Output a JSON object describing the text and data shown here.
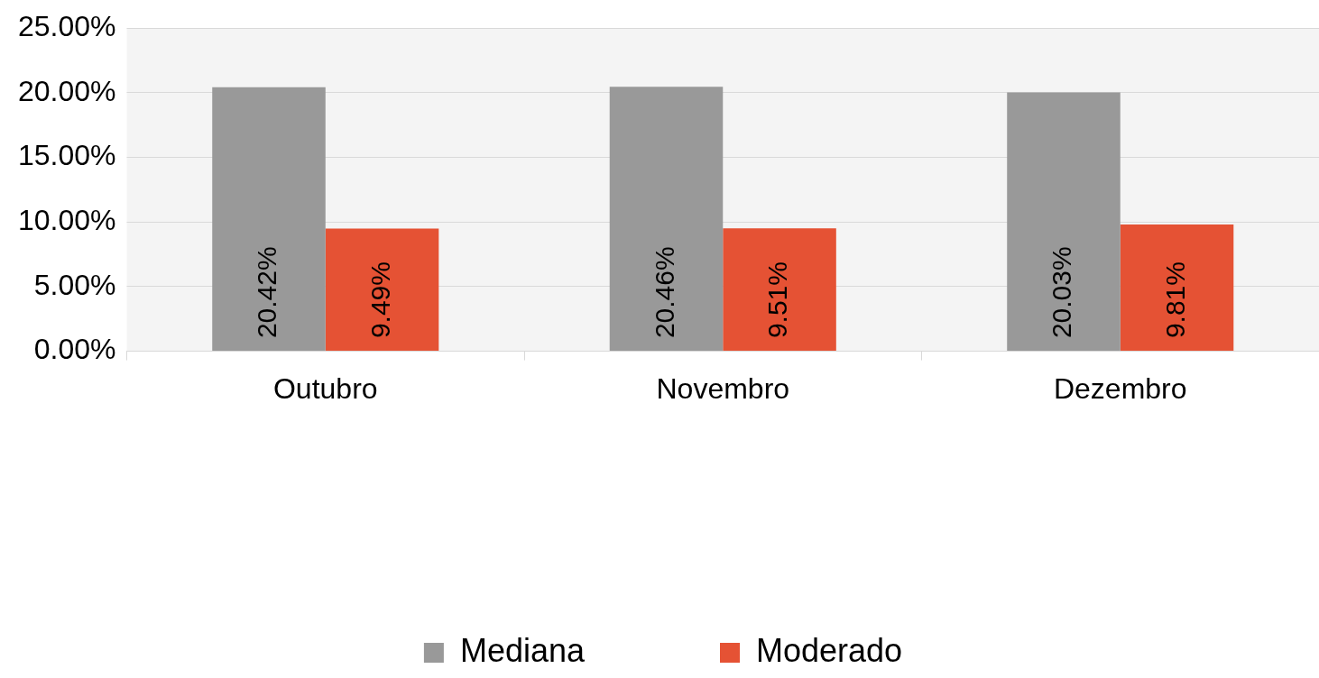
{
  "chart_data": {
    "type": "bar",
    "categories": [
      "Outubro",
      "Novembro",
      "Dezembro"
    ],
    "series": [
      {
        "name": "Mediana",
        "color": "#999999",
        "values": [
          20.42,
          20.46,
          20.03
        ]
      },
      {
        "name": "Moderado",
        "color": "#e55234",
        "values": [
          9.49,
          9.51,
          9.81
        ]
      }
    ],
    "ylim": [
      0,
      25
    ],
    "yticks": [
      {
        "value": 0,
        "label": "0.00%"
      },
      {
        "value": 5,
        "label": "5.00%"
      },
      {
        "value": 10,
        "label": "10.00%"
      },
      {
        "value": 15,
        "label": "15.00%"
      },
      {
        "value": 20,
        "label": "20.00%"
      },
      {
        "value": 25,
        "label": "25.00%"
      }
    ],
    "value_labels": [
      [
        "20.42%",
        "20.46%",
        "20.03%"
      ],
      [
        "9.49%",
        "9.51%",
        "9.81%"
      ]
    ],
    "grid": "y",
    "legend": "bottom"
  }
}
